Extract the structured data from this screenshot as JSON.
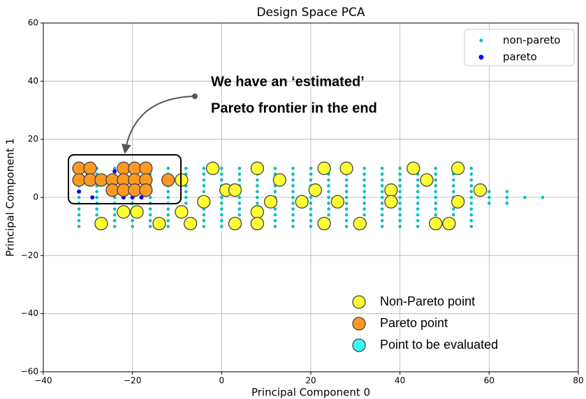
{
  "chart_data": {
    "type": "scatter",
    "title": "Design Space PCA",
    "xlabel": "Principal Component 0",
    "ylabel": "Principal Component 1",
    "xlim": [
      -40,
      80
    ],
    "ylim": [
      -60,
      60
    ],
    "xticks": [
      {
        "value": -40,
        "label": "−40"
      },
      {
        "value": -20,
        "label": "−20"
      },
      0,
      20,
      40,
      60,
      80
    ],
    "yticks": [
      {
        "value": -60,
        "label": "−60"
      },
      {
        "value": -40,
        "label": "−40"
      },
      {
        "value": -20,
        "label": "−20"
      },
      0,
      20,
      40,
      60
    ],
    "grid": true,
    "annotations": [
      "We have an ‘estimated’",
      "Pareto frontier in the end"
    ],
    "series": [
      {
        "name": "non-pareto",
        "color": "#00bfbf",
        "legend": "upper right",
        "size": "small",
        "x": [
          -32,
          -28,
          -24,
          -20,
          -16,
          -12,
          -8,
          -4,
          0,
          4,
          8,
          12,
          16,
          20,
          24,
          28,
          32,
          36,
          40,
          44,
          48,
          52,
          56,
          -32,
          -28,
          -24,
          -20,
          -16,
          -12,
          -8,
          -4,
          0,
          4,
          8,
          12,
          16,
          20,
          24,
          28,
          32,
          36,
          40,
          44,
          48,
          52,
          56,
          -32,
          -28,
          -24,
          -20,
          -16,
          -12,
          -8,
          -4,
          0,
          4,
          8,
          12,
          16,
          20,
          24,
          28,
          32,
          36,
          40,
          44,
          48,
          52,
          56,
          -32,
          -28,
          -24,
          -20,
          -16,
          -12,
          -8,
          -4,
          0,
          4,
          8,
          12,
          16,
          20,
          24,
          28,
          32,
          36,
          40,
          44,
          48,
          52,
          56,
          -32,
          -28,
          -24,
          -20,
          -16,
          -12,
          -8,
          -4,
          0,
          4,
          8,
          12,
          16,
          20,
          24,
          28,
          32,
          36,
          40,
          44,
          48,
          52,
          56,
          -32,
          -28,
          -24,
          -20,
          -16,
          -12,
          -8,
          -4,
          0,
          4,
          8,
          12,
          16,
          20,
          24,
          28,
          32,
          36,
          40,
          44,
          48,
          52,
          56,
          -32,
          -28,
          -24,
          -20,
          -16,
          -12,
          -8,
          -4,
          0,
          4,
          8,
          12,
          16,
          20,
          24,
          28,
          32,
          36,
          40,
          44,
          48,
          52,
          56,
          -32,
          -28,
          -24,
          -20,
          -16,
          -12,
          -8,
          -4,
          0,
          4,
          8,
          12,
          16,
          20,
          24,
          28,
          32,
          36,
          40,
          44,
          48,
          52,
          56,
          -32,
          -28,
          -24,
          -20,
          -16,
          -12,
          -8,
          -4,
          0,
          4,
          8,
          12,
          16,
          20,
          24,
          28,
          32,
          36,
          40,
          44,
          48,
          52,
          56,
          -32,
          -28,
          -24,
          -20,
          -16,
          -12,
          -8,
          -4,
          0,
          4,
          8,
          12,
          16,
          20,
          24,
          28,
          32,
          36,
          40,
          44,
          48,
          52,
          56,
          -32,
          -28,
          -24,
          -20,
          -16,
          -12,
          -8,
          -4,
          0,
          4,
          8,
          12,
          16,
          20,
          24,
          28,
          32,
          36,
          40,
          44,
          48,
          52,
          56,
          60,
          64,
          68,
          72,
          60,
          64,
          60,
          64
        ],
        "y": [
          -10,
          -10,
          -10,
          -10,
          -10,
          -10,
          -10,
          -10,
          -10,
          -10,
          -10,
          -10,
          -10,
          -10,
          -10,
          -10,
          -10,
          -10,
          -10,
          -10,
          -10,
          -10,
          -10,
          -8,
          -8,
          -8,
          -8,
          -8,
          -8,
          -8,
          -8,
          -8,
          -8,
          -8,
          -8,
          -8,
          -8,
          -8,
          -8,
          -8,
          -8,
          -8,
          -8,
          -8,
          -8,
          -8,
          -6,
          -6,
          -6,
          -6,
          -6,
          -6,
          -6,
          -6,
          -6,
          -6,
          -6,
          -6,
          -6,
          -6,
          -6,
          -6,
          -6,
          -6,
          -6,
          -6,
          -6,
          -6,
          -6,
          -4,
          -4,
          -4,
          -4,
          -4,
          -4,
          -4,
          -4,
          -4,
          -4,
          -4,
          -4,
          -4,
          -4,
          -4,
          -4,
          -4,
          -4,
          -4,
          -4,
          -4,
          -4,
          -4,
          -2,
          -2,
          -2,
          -2,
          -2,
          -2,
          -2,
          -2,
          -2,
          -2,
          -2,
          -2,
          -2,
          -2,
          -2,
          -2,
          -2,
          -2,
          -2,
          -2,
          -2,
          -2,
          -2,
          0,
          0,
          0,
          0,
          0,
          0,
          0,
          0,
          0,
          0,
          0,
          0,
          0,
          0,
          0,
          0,
          0,
          0,
          0,
          0,
          0,
          0,
          0,
          2,
          2,
          2,
          2,
          2,
          2,
          2,
          2,
          2,
          2,
          2,
          2,
          2,
          2,
          2,
          2,
          2,
          2,
          2,
          2,
          2,
          2,
          2,
          4,
          4,
          4,
          4,
          4,
          4,
          4,
          4,
          4,
          4,
          4,
          4,
          4,
          4,
          4,
          4,
          4,
          4,
          4,
          4,
          4,
          4,
          4,
          6,
          6,
          6,
          6,
          6,
          6,
          6,
          6,
          6,
          6,
          6,
          6,
          6,
          6,
          6,
          6,
          6,
          6,
          6,
          6,
          6,
          6,
          6,
          8,
          8,
          8,
          8,
          8,
          8,
          8,
          8,
          8,
          8,
          8,
          8,
          8,
          8,
          8,
          8,
          8,
          8,
          8,
          8,
          8,
          8,
          8,
          10,
          10,
          10,
          10,
          10,
          10,
          10,
          10,
          10,
          10,
          10,
          10,
          10,
          10,
          10,
          10,
          10,
          10,
          10,
          10,
          10,
          10,
          10,
          0,
          0,
          0,
          0,
          2,
          2,
          -2,
          -2
        ]
      },
      {
        "name": "pareto",
        "color": "#0000ff",
        "legend": "upper right",
        "size": "small",
        "x": [
          -32,
          -29,
          -23,
          -22,
          -20,
          -18,
          -21,
          -19,
          -24,
          -30
        ],
        "y": [
          2,
          0,
          10,
          0,
          0,
          0,
          10,
          11,
          9,
          8
        ]
      },
      {
        "name": "Non-Pareto point",
        "color": "#ffff33",
        "legend": "lower right",
        "size": "large",
        "x": [
          -2,
          8,
          23,
          28,
          43,
          53,
          -9,
          13,
          46,
          1,
          3,
          21,
          38,
          58,
          -4,
          11,
          18,
          26,
          38,
          53,
          -22,
          -19,
          -9,
          8,
          -27,
          -14,
          -7,
          3,
          8,
          23,
          31,
          48,
          51
        ],
        "y": [
          10,
          10,
          10,
          10,
          10,
          10,
          6,
          6,
          6,
          2.5,
          2.5,
          2.5,
          2.5,
          2.5,
          -1.5,
          -1.5,
          -1.5,
          -1.5,
          -1.5,
          -1.5,
          -5,
          -5,
          -5,
          -5,
          -9,
          -9,
          -9,
          -9,
          -9,
          -9,
          -9,
          -9,
          -9
        ]
      },
      {
        "name": "Pareto point",
        "color": "#ff9922",
        "legend": "lower right",
        "size": "large",
        "x": [
          -32,
          -29.5,
          -22,
          -19.5,
          -17,
          -32,
          -29.5,
          -27,
          -24.5,
          -22,
          -19.5,
          -17,
          -12,
          -24.5,
          -22,
          -19.5,
          -17
        ],
        "y": [
          10,
          10,
          10,
          10,
          10,
          6,
          6,
          6,
          6,
          6,
          6,
          6,
          6,
          2.5,
          2.5,
          2.5,
          2.5
        ]
      },
      {
        "name": "Point to be evaluated",
        "color": "#33ffff",
        "legend": "lower right",
        "size": "large",
        "x": [],
        "y": []
      }
    ]
  }
}
